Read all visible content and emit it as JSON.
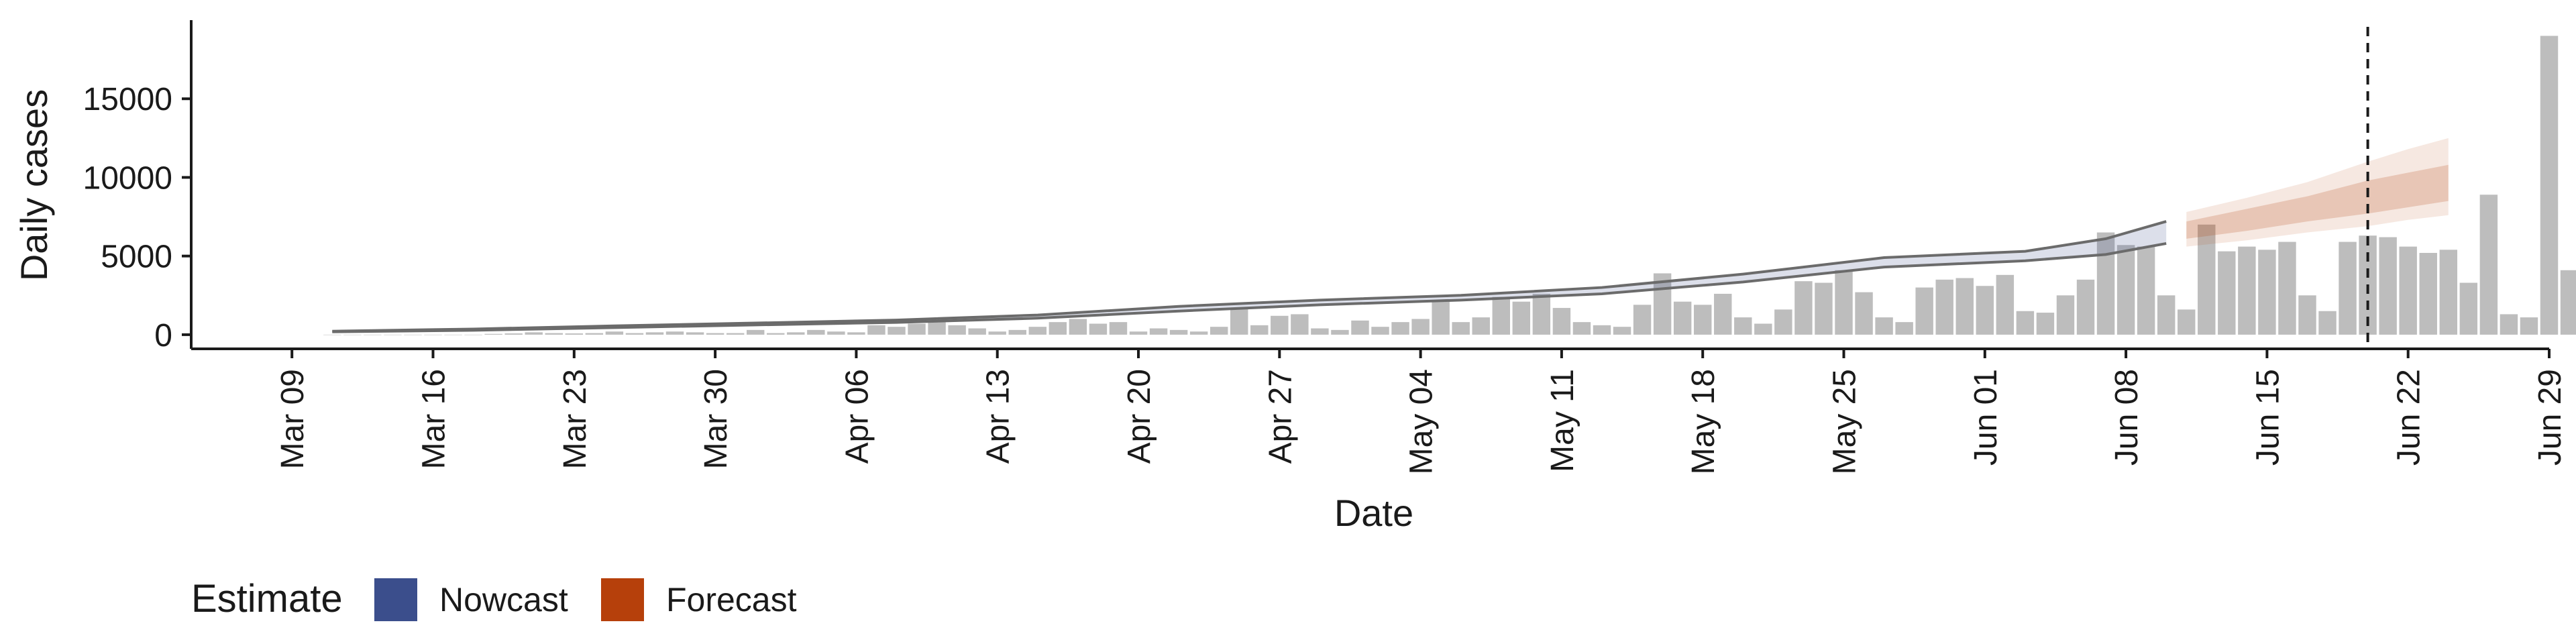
{
  "colors": {
    "bar": "#bdbdbd",
    "nowcast": "#3b4e8c",
    "forecast": "#b6400b",
    "axis": "#1a1a1a",
    "line": "#6b6b6b"
  },
  "legend": {
    "title": "Estimate",
    "items": [
      {
        "label": "Nowcast",
        "color": "#3b4e8c"
      },
      {
        "label": "Forecast",
        "color": "#b6400b"
      }
    ]
  },
  "chart_data": {
    "type": "bar",
    "xlabel": "Date",
    "ylabel": "Daily cases",
    "ylim": [
      -900,
      20000
    ],
    "xlim": [
      "2020-03-04",
      "2020-06-29"
    ],
    "yticks": [
      0,
      5000,
      10000,
      15000
    ],
    "xticks": [
      "2020-03-09",
      "2020-03-16",
      "2020-03-23",
      "2020-03-30",
      "2020-04-06",
      "2020-04-13",
      "2020-04-20",
      "2020-04-27",
      "2020-05-04",
      "2020-05-11",
      "2020-05-18",
      "2020-05-25",
      "2020-06-01",
      "2020-06-08",
      "2020-06-15",
      "2020-06-22",
      "2020-06-29"
    ],
    "xtick_labels": [
      "Mar 09",
      "Mar 16",
      "Mar 23",
      "Mar 30",
      "Apr 06",
      "Apr 13",
      "Apr 20",
      "Apr 27",
      "May 04",
      "May 11",
      "May 18",
      "May 25",
      "Jun 01",
      "Jun 08",
      "Jun 15",
      "Jun 22",
      "Jun 29"
    ],
    "vline_date": "2020-06-20",
    "bars": {
      "start_date": "2020-03-11",
      "values": [
        0,
        0,
        0,
        0,
        0,
        0,
        0,
        0,
        50,
        80,
        150,
        100,
        80,
        100,
        200,
        100,
        150,
        200,
        150,
        100,
        100,
        300,
        100,
        150,
        300,
        200,
        150,
        600,
        500,
        700,
        800,
        600,
        400,
        200,
        300,
        500,
        800,
        1000,
        700,
        800,
        200,
        400,
        300,
        200,
        500,
        1700,
        600,
        1200,
        1300,
        400,
        300,
        900,
        500,
        800,
        1000,
        2200,
        800,
        1100,
        2400,
        2100,
        2600,
        1700,
        800,
        600,
        500,
        1900,
        3900,
        2100,
        1900,
        2600,
        1100,
        700,
        1600,
        3400,
        3300,
        4100,
        2700,
        1100,
        800,
        3000,
        3500,
        3600,
        3100,
        3800,
        1500,
        1400,
        2500,
        3500,
        6500,
        5700,
        5600,
        2500,
        1600,
        7000,
        5300,
        5600,
        5400,
        5900,
        2500,
        1500,
        5900,
        6300,
        6200,
        5600,
        5200,
        5400,
        3300,
        8900,
        1300,
        1100,
        19000,
        4100
      ]
    },
    "nowcast": {
      "x": [
        "2020-03-11",
        "2020-03-18",
        "2020-03-25",
        "2020-04-01",
        "2020-04-08",
        "2020-04-15",
        "2020-04-22",
        "2020-04-29",
        "2020-05-06",
        "2020-05-13",
        "2020-05-20",
        "2020-05-27",
        "2020-06-03",
        "2020-06-07",
        "2020-06-10"
      ],
      "median": [
        200,
        320,
        500,
        680,
        850,
        1150,
        1650,
        2050,
        2350,
        2800,
        3600,
        4600,
        5000,
        5600,
        6500
      ],
      "lower": [
        180,
        280,
        450,
        620,
        780,
        1050,
        1500,
        1900,
        2200,
        2600,
        3350,
        4300,
        4700,
        5100,
        5800
      ],
      "upper": [
        220,
        360,
        560,
        740,
        930,
        1250,
        1800,
        2200,
        2500,
        3000,
        3850,
        4900,
        5300,
        6100,
        7200
      ]
    },
    "forecast": {
      "x": [
        "2020-06-11",
        "2020-06-14",
        "2020-06-17",
        "2020-06-20",
        "2020-06-22",
        "2020-06-24"
      ],
      "median": [
        6700,
        7300,
        8000,
        8800,
        9400,
        9800
      ],
      "inner_lower": [
        6100,
        6600,
        7200,
        7700,
        8100,
        8500
      ],
      "inner_upper": [
        7200,
        8000,
        8800,
        9800,
        10300,
        10800
      ],
      "outer_lower": [
        5600,
        6000,
        6500,
        6900,
        7300,
        7600
      ],
      "outer_upper": [
        7800,
        8700,
        9700,
        11000,
        11800,
        12500
      ]
    }
  }
}
